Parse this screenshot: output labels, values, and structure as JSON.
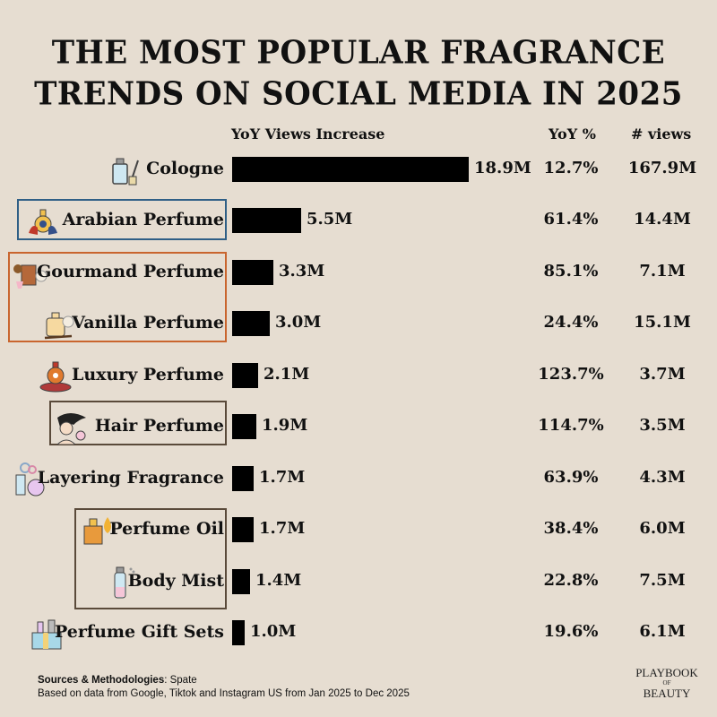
{
  "title": {
    "line1": "THE MOST POPULAR FRAGRANCE",
    "line2": "TRENDS ON SOCIAL MEDIA IN 2025"
  },
  "headers": {
    "bar": "YoY Views Increase",
    "yoy": "YoY %",
    "views": "# views"
  },
  "colors": {
    "background": "#e6ddd1",
    "bar": "#000000",
    "arabian_box": "#2f5f86",
    "gourmand_vanilla_box": "#c9652e",
    "hair_box": "#5a4a3a",
    "oil_mist_box": "#5a4a3a"
  },
  "rows": [
    {
      "label": "Cologne",
      "icon": "cologne-bottle-icon",
      "increase": "18.9M",
      "yoy": "12.7%",
      "views": "167.9M"
    },
    {
      "label": "Arabian Perfume",
      "icon": "arabian-perfume-icon",
      "increase": "5.5M",
      "yoy": "61.4%",
      "views": "14.4M"
    },
    {
      "label": "Gourmand Perfume",
      "icon": "gourmand-perfume-icon",
      "increase": "3.3M",
      "yoy": "85.1%",
      "views": "7.1M"
    },
    {
      "label": "Vanilla Perfume",
      "icon": "vanilla-perfume-icon",
      "increase": "3.0M",
      "yoy": "24.4%",
      "views": "15.1M"
    },
    {
      "label": "Luxury Perfume",
      "icon": "luxury-perfume-icon",
      "increase": "2.1M",
      "yoy": "123.7%",
      "views": "3.7M"
    },
    {
      "label": "Hair Perfume",
      "icon": "hair-perfume-icon",
      "increase": "1.9M",
      "yoy": "114.7%",
      "views": "3.5M"
    },
    {
      "label": "Layering Fragrance",
      "icon": "layering-fragrance-icon",
      "increase": "1.7M",
      "yoy": "63.9%",
      "views": "4.3M"
    },
    {
      "label": "Perfume Oil",
      "icon": "perfume-oil-icon",
      "increase": "1.7M",
      "yoy": "38.4%",
      "views": "6.0M"
    },
    {
      "label": "Body Mist",
      "icon": "body-mist-icon",
      "increase": "1.4M",
      "yoy": "22.8%",
      "views": "7.5M"
    },
    {
      "label": "Perfume Gift Sets",
      "icon": "gift-set-icon",
      "increase": "1.0M",
      "yoy": "19.6%",
      "views": "6.1M"
    }
  ],
  "footer": {
    "sources_label": "Sources & Methodologies",
    "sources_value": ": Spate",
    "note": "Based on data from Google, Tiktok and Instagram US from Jan 2025 to Dec 2025"
  },
  "logo": {
    "line1": "PLAYBOOK",
    "line2": "OF",
    "line3": "BEAUTY"
  },
  "chart_data": {
    "type": "bar",
    "orientation": "horizontal",
    "title": "THE MOST POPULAR FRAGRANCE TRENDS ON SOCIAL MEDIA IN 2025",
    "xlabel": "YoY Views Increase",
    "ylabel": "",
    "categories": [
      "Cologne",
      "Arabian Perfume",
      "Gourmand Perfume",
      "Vanilla Perfume",
      "Luxury Perfume",
      "Hair Perfume",
      "Layering Fragrance",
      "Perfume Oil",
      "Body Mist",
      "Perfume Gift Sets"
    ],
    "series": [
      {
        "name": "YoY Views Increase (M)",
        "values": [
          18.9,
          5.5,
          3.3,
          3.0,
          2.1,
          1.9,
          1.7,
          1.7,
          1.4,
          1.0
        ]
      },
      {
        "name": "YoY %",
        "values": [
          12.7,
          61.4,
          85.1,
          24.4,
          123.7,
          114.7,
          63.9,
          38.4,
          22.8,
          19.6
        ]
      },
      {
        "name": "# views (M)",
        "values": [
          167.9,
          14.4,
          7.1,
          15.1,
          3.7,
          3.5,
          4.3,
          6.0,
          7.5,
          6.1
        ]
      }
    ],
    "grid": false,
    "legend": "none",
    "annotations": [
      "Sources & Methodologies: Spate",
      "Based on data from Google, Tiktok and Instagram US from Jan 2025 to Dec 2025"
    ]
  }
}
